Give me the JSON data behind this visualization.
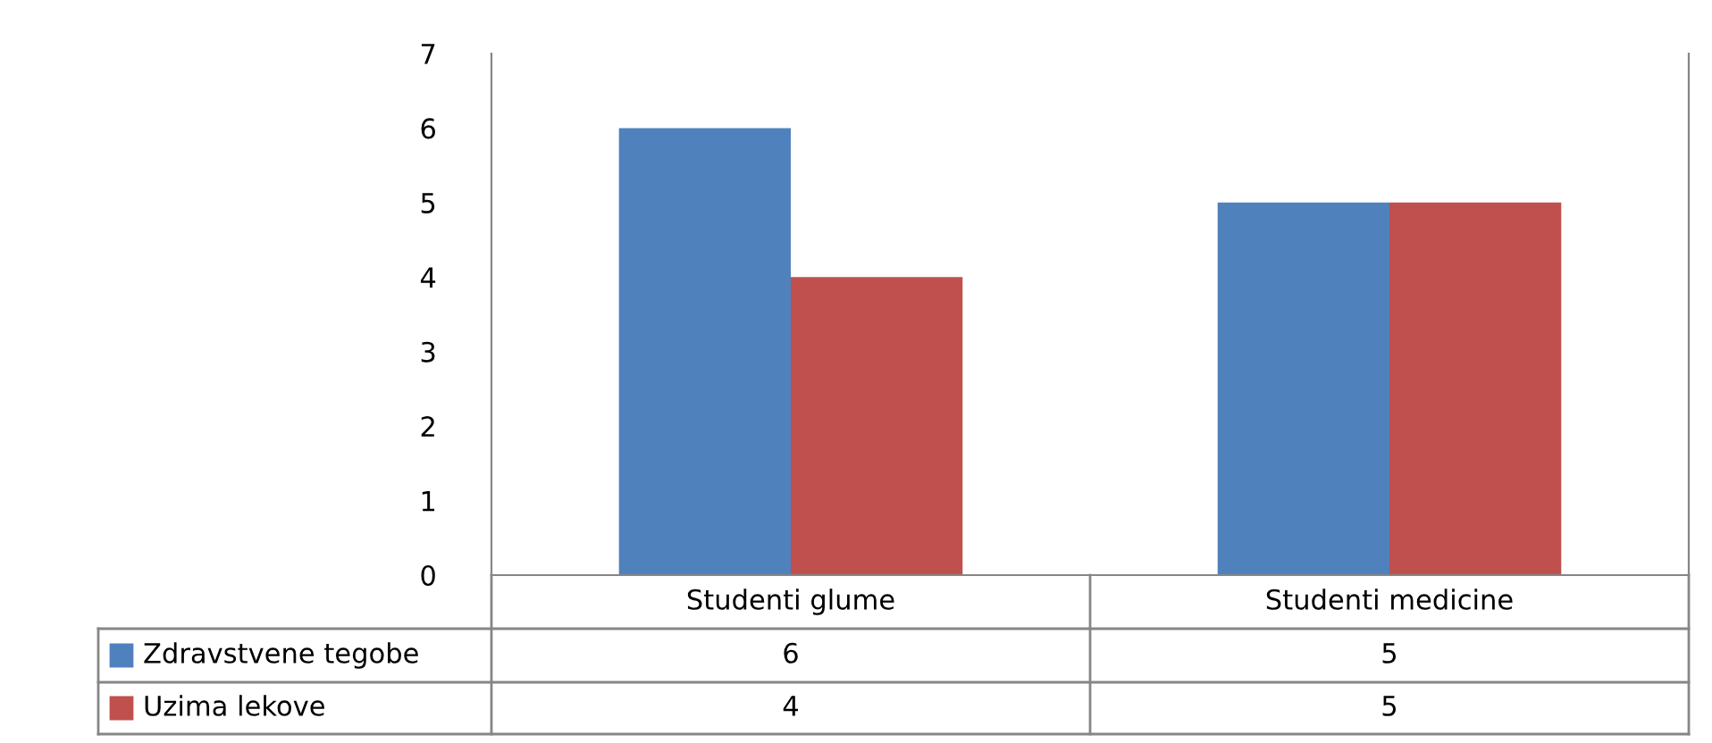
{
  "chart_data": {
    "type": "bar",
    "categories": [
      "Studenti glume",
      "Studenti medicine"
    ],
    "series": [
      {
        "name": "Zdravstvene tegobe",
        "color": "#4f81bd",
        "values": [
          6,
          5
        ]
      },
      {
        "name": "Uzima lekove",
        "color": "#c0504d",
        "values": [
          4,
          5
        ]
      }
    ],
    "ylim": [
      0,
      7
    ],
    "yticks": [
      0,
      1,
      2,
      3,
      4,
      5,
      6,
      7
    ],
    "grid": false,
    "legend": "bottom",
    "data_labels": true
  }
}
